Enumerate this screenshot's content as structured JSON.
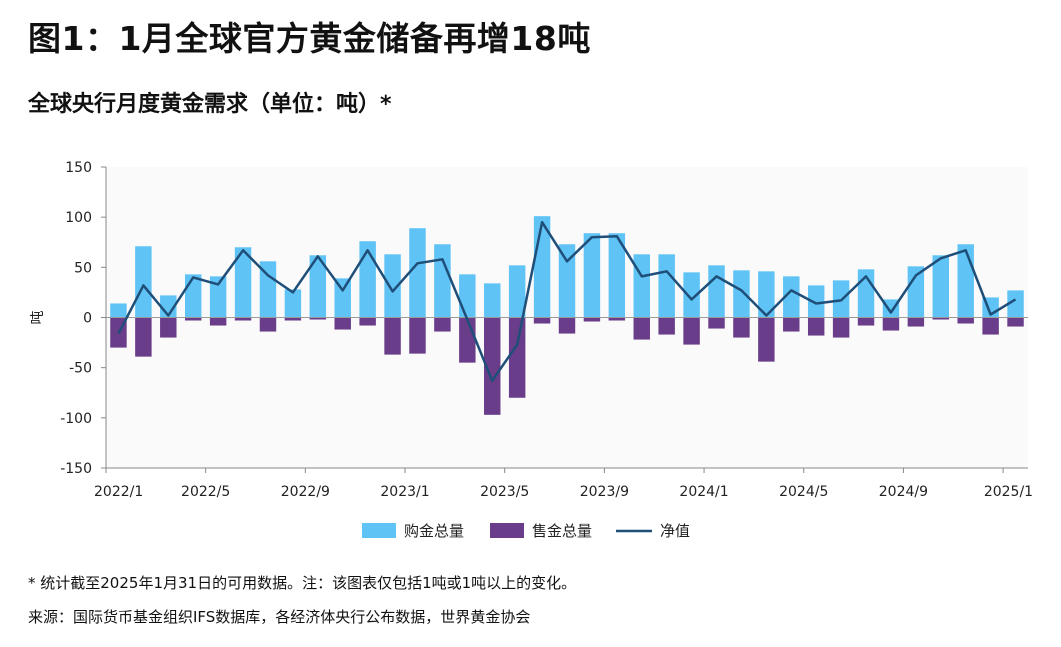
{
  "title": "图1：1月全球官方黄金储备再增18吨",
  "subtitle": "全球央行月度黄金需求（单位：吨）*",
  "footnote": "* 统计截至2025年1月31日的可用数据。注：该图表仅包括1吨或1吨以上的变化。",
  "source": "来源：国际货币基金组织IFS数据库，各经济体央行公布数据，世界黄金协会",
  "colors": {
    "purchases": "#5fc3f5",
    "sales": "#6a3d8a",
    "net": "#1f4e79",
    "axis": "#888888",
    "plot_bg": "#fafafa"
  },
  "chart_data": {
    "type": "bar",
    "ylabel": "吨",
    "ylim": [
      -150,
      150
    ],
    "yticks": [
      150,
      100,
      50,
      0,
      -50,
      -100,
      -150
    ],
    "xtick_labels": [
      "2022/1",
      "2022/5",
      "2022/9",
      "2023/1",
      "2023/5",
      "2023/9",
      "2024/1",
      "2024/5",
      "2024/9",
      "2025/1"
    ],
    "categories": [
      "2022/1",
      "2022/2",
      "2022/3",
      "2022/4",
      "2022/5",
      "2022/6",
      "2022/7",
      "2022/8",
      "2022/9",
      "2022/10",
      "2022/11",
      "2022/12",
      "2023/1",
      "2023/2",
      "2023/3",
      "2023/4",
      "2023/5",
      "2023/6",
      "2023/7",
      "2023/8",
      "2023/9",
      "2023/10",
      "2023/11",
      "2023/12",
      "2024/1",
      "2024/2",
      "2024/3",
      "2024/4",
      "2024/5",
      "2024/6",
      "2024/7",
      "2024/8",
      "2024/9",
      "2024/10",
      "2024/11",
      "2024/12",
      "2025/1"
    ],
    "legend_position": "bottom-center",
    "series": [
      {
        "name": "购金总量",
        "type": "bar",
        "values": [
          14,
          71,
          22,
          43,
          41,
          70,
          56,
          28,
          62,
          39,
          76,
          63,
          89,
          73,
          43,
          34,
          52,
          101,
          73,
          84,
          84,
          63,
          63,
          45,
          52,
          47,
          46,
          41,
          32,
          37,
          48,
          18,
          51,
          62,
          73,
          20,
          27
        ]
      },
      {
        "name": "售金总量",
        "type": "bar",
        "values": [
          -30,
          -39,
          -20,
          -3,
          -8,
          -3,
          -14,
          -3,
          -2,
          -12,
          -8,
          -37,
          -36,
          -14,
          -45,
          -97,
          -80,
          -6,
          -16,
          -4,
          -3,
          -22,
          -17,
          -27,
          -11,
          -20,
          -44,
          -14,
          -18,
          -20,
          -8,
          -13,
          -9,
          -2,
          -6,
          -17,
          -9
        ]
      },
      {
        "name": "净值",
        "type": "line",
        "values": [
          -16,
          32,
          2,
          40,
          33,
          67,
          42,
          25,
          61,
          27,
          67,
          26,
          54,
          58,
          -2,
          -63,
          -27,
          95,
          56,
          80,
          81,
          41,
          46,
          18,
          41,
          27,
          2,
          27,
          14,
          17,
          41,
          5,
          42,
          59,
          67,
          3,
          18
        ]
      }
    ]
  }
}
